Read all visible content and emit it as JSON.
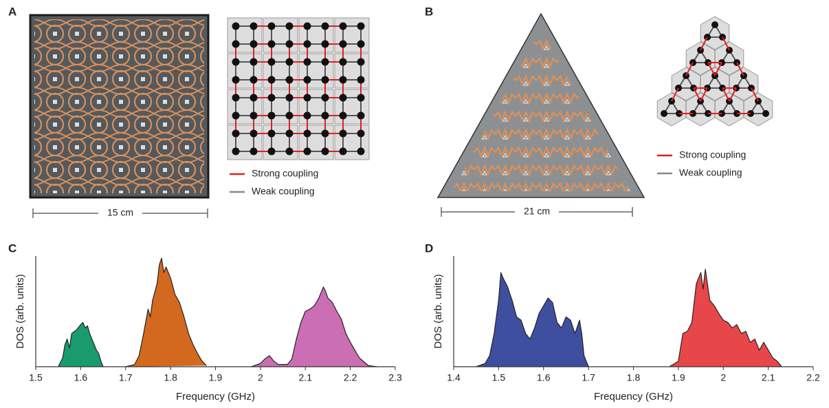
{
  "panels": [
    {
      "label": "A",
      "scale": "15 cm",
      "legend": [
        "Strong coupling",
        "Weak coupling"
      ]
    },
    {
      "label": "B",
      "scale": "21 cm",
      "legend": [
        "Strong coupling",
        "Weak coupling"
      ]
    }
  ],
  "chart_data": [
    {
      "type": "area",
      "label": "C",
      "xlabel": "Frequency (GHz)",
      "ylabel": "DOS (arb. units)",
      "xlim": [
        1.5,
        2.3
      ],
      "xticks": [
        1.5,
        1.6,
        1.7,
        1.8,
        1.9,
        2.0,
        2.1,
        2.2,
        2.3
      ],
      "ylim": [
        0,
        1
      ],
      "series": [
        {
          "color": "#1b9a6e",
          "x": [
            1.55,
            1.56,
            1.565,
            1.57,
            1.575,
            1.58,
            1.59,
            1.6,
            1.605,
            1.61,
            1.615,
            1.62,
            1.63,
            1.635,
            1.64,
            1.645,
            1.65
          ],
          "values": [
            0,
            0.08,
            0.2,
            0.25,
            0.17,
            0.3,
            0.33,
            0.38,
            0.4,
            0.35,
            0.37,
            0.3,
            0.2,
            0.15,
            0.12,
            0.05,
            0
          ]
        },
        {
          "color": "#d2691e",
          "x": [
            1.7,
            1.72,
            1.73,
            1.74,
            1.75,
            1.755,
            1.76,
            1.77,
            1.775,
            1.78,
            1.785,
            1.79,
            1.8,
            1.81,
            1.82,
            1.83,
            1.84,
            1.85,
            1.86,
            1.87,
            1.88
          ],
          "values": [
            0,
            0.02,
            0.1,
            0.3,
            0.52,
            0.45,
            0.6,
            0.75,
            0.92,
            0.98,
            0.85,
            0.9,
            0.8,
            0.65,
            0.58,
            0.45,
            0.3,
            0.2,
            0.12,
            0.05,
            0.01
          ]
        },
        {
          "color": "#cc6eb4",
          "x": [
            1.98,
            2.0,
            2.01,
            2.02,
            2.03,
            2.04,
            2.06,
            2.07,
            2.08,
            2.09,
            2.1,
            2.11,
            2.12,
            2.13,
            2.14,
            2.145,
            2.15,
            2.16,
            2.17,
            2.18,
            2.19,
            2.2,
            2.21,
            2.22,
            2.24,
            2.26
          ],
          "values": [
            0,
            0.03,
            0.07,
            0.1,
            0.05,
            0.02,
            0.02,
            0.07,
            0.25,
            0.4,
            0.5,
            0.52,
            0.55,
            0.62,
            0.72,
            0.68,
            0.62,
            0.58,
            0.5,
            0.43,
            0.3,
            0.22,
            0.15,
            0.08,
            0.01,
            0
          ]
        }
      ]
    },
    {
      "type": "area",
      "label": "D",
      "xlabel": "Frequency (GHz)",
      "ylabel": "DOS (arb. units)",
      "xlim": [
        1.4,
        2.2
      ],
      "xticks": [
        1.4,
        1.5,
        1.6,
        1.7,
        1.8,
        1.9,
        2.0,
        2.1,
        2.2
      ],
      "ylim": [
        0,
        1
      ],
      "series": [
        {
          "color": "#3f4fa0",
          "x": [
            1.45,
            1.47,
            1.48,
            1.49,
            1.5,
            1.505,
            1.51,
            1.52,
            1.53,
            1.54,
            1.55,
            1.56,
            1.57,
            1.58,
            1.59,
            1.6,
            1.61,
            1.62,
            1.63,
            1.64,
            1.65,
            1.66,
            1.67,
            1.68,
            1.685,
            1.69,
            1.7
          ],
          "values": [
            0,
            0.03,
            0.1,
            0.3,
            0.6,
            0.85,
            0.8,
            0.72,
            0.6,
            0.45,
            0.42,
            0.3,
            0.25,
            0.35,
            0.48,
            0.55,
            0.62,
            0.58,
            0.4,
            0.35,
            0.45,
            0.42,
            0.3,
            0.42,
            0.3,
            0.1,
            0
          ]
        },
        {
          "color": "#e8474a",
          "x": [
            1.88,
            1.9,
            1.91,
            1.92,
            1.93,
            1.94,
            1.95,
            1.955,
            1.96,
            1.97,
            1.98,
            1.99,
            2.0,
            2.01,
            2.02,
            2.03,
            2.04,
            2.05,
            2.06,
            2.07,
            2.08,
            2.09,
            2.1,
            2.11,
            2.12,
            2.13
          ],
          "values": [
            0,
            0.05,
            0.3,
            0.32,
            0.4,
            0.75,
            0.85,
            0.7,
            0.88,
            0.6,
            0.55,
            0.48,
            0.42,
            0.4,
            0.35,
            0.38,
            0.3,
            0.32,
            0.22,
            0.25,
            0.15,
            0.22,
            0.15,
            0.08,
            0.05,
            0
          ]
        }
      ]
    }
  ]
}
